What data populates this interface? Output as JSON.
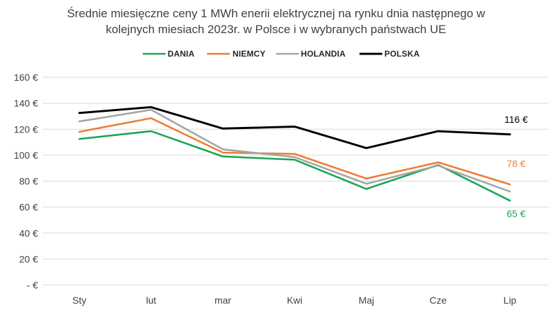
{
  "chart_data": {
    "type": "line",
    "title_lines": [
      "Średnie miesięczne ceny 1 MWh enerii elektrycznej na rynku dnia następnego w",
      "kolejnych miesiach 2023r. w Polsce i w wybranych państwach UE"
    ],
    "categories": [
      "Sty",
      "lut",
      "mar",
      "Kwi",
      "Maj",
      "Cze",
      "Lip"
    ],
    "ylim": [
      0,
      160
    ],
    "y_ticks": [
      0,
      20,
      40,
      60,
      80,
      100,
      120,
      140,
      160
    ],
    "y_tick_labels": [
      "- €",
      "20 €",
      "40 €",
      "60 €",
      "80 €",
      "100 €",
      "120 €",
      "140 €",
      "160 €"
    ],
    "grid": true,
    "legend_position": "top-center",
    "series": [
      {
        "name": "DANIA",
        "color": "#1aa653",
        "values": [
          112.5,
          118.5,
          99,
          96.5,
          74,
          92.5,
          65
        ],
        "end_label": "65 €"
      },
      {
        "name": "NIEMCY",
        "color": "#ed7d31",
        "values": [
          118,
          128.5,
          102,
          101,
          82,
          94.5,
          77.5
        ],
        "end_label": "78 €"
      },
      {
        "name": "HOLANDIA",
        "color": "#a5a5a5",
        "values": [
          126,
          135,
          104.5,
          98.5,
          78,
          92,
          72
        ],
        "end_label": ""
      },
      {
        "name": "POLSKA",
        "color": "#000000",
        "values": [
          132.5,
          137,
          120.5,
          122,
          105.5,
          118.5,
          116
        ],
        "end_label": "116 €"
      }
    ]
  }
}
